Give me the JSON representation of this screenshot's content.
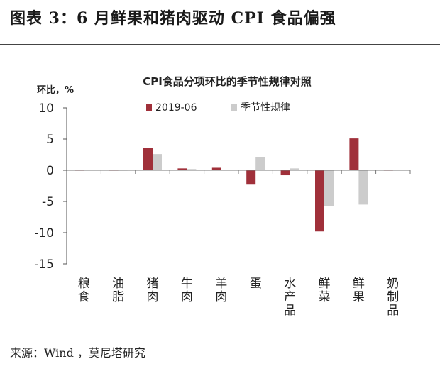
{
  "figure": {
    "title": "图表 3：6 月鲜果和猪肉驱动 CPI 食品偏强",
    "source": "来源：Wind ，莫尼塔研究"
  },
  "chart_data": {
    "type": "bar",
    "title": "CPI食品分项环比的季节性规律对照",
    "ylabel": "环比，%",
    "ylim": [
      -15,
      10
    ],
    "yticks": [
      10,
      5,
      0,
      -5,
      -10,
      -15
    ],
    "grid": false,
    "legend_position": "top-center",
    "categories": [
      "粮食",
      "油脂",
      "猪肉",
      "牛肉",
      "羊肉",
      "蛋",
      "水产品",
      "鲜菜",
      "鲜果",
      "奶制品"
    ],
    "series": [
      {
        "name": "2019-06",
        "color": "#a0303a",
        "values": [
          0.0,
          0.0,
          3.6,
          0.3,
          0.4,
          -2.3,
          -0.8,
          -9.8,
          5.1,
          0.0
        ]
      },
      {
        "name": "季节性规律",
        "color": "#cccccc",
        "values": [
          0.1,
          0.0,
          2.6,
          0.2,
          0.1,
          2.1,
          0.3,
          -5.7,
          -5.5,
          0.1
        ]
      }
    ]
  }
}
